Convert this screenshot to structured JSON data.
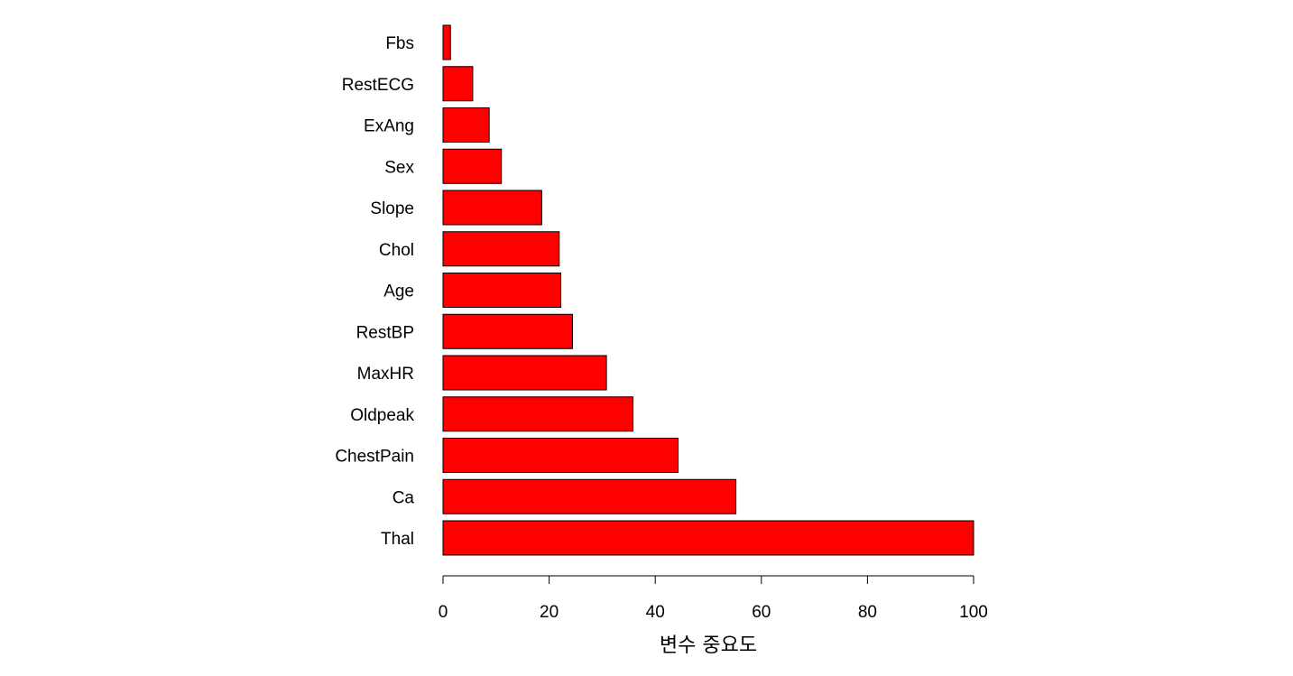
{
  "chart_data": {
    "type": "bar",
    "orientation": "horizontal",
    "categories": [
      "Thal",
      "Ca",
      "ChestPain",
      "Oldpeak",
      "MaxHR",
      "RestBP",
      "Age",
      "Chol",
      "Slope",
      "Sex",
      "ExAng",
      "RestECG",
      "Fbs"
    ],
    "values": [
      100,
      55.2,
      44.3,
      35.8,
      30.8,
      24.4,
      22.2,
      21.9,
      18.6,
      11.0,
      8.7,
      5.6,
      1.4
    ],
    "xlabel": "변수 중요도",
    "ylabel": "",
    "title": "",
    "xlim": [
      0,
      100
    ],
    "xticks": [
      0,
      20,
      40,
      60,
      80,
      100
    ],
    "bar_color": "#ff0000",
    "grid": false,
    "legend": "none"
  }
}
